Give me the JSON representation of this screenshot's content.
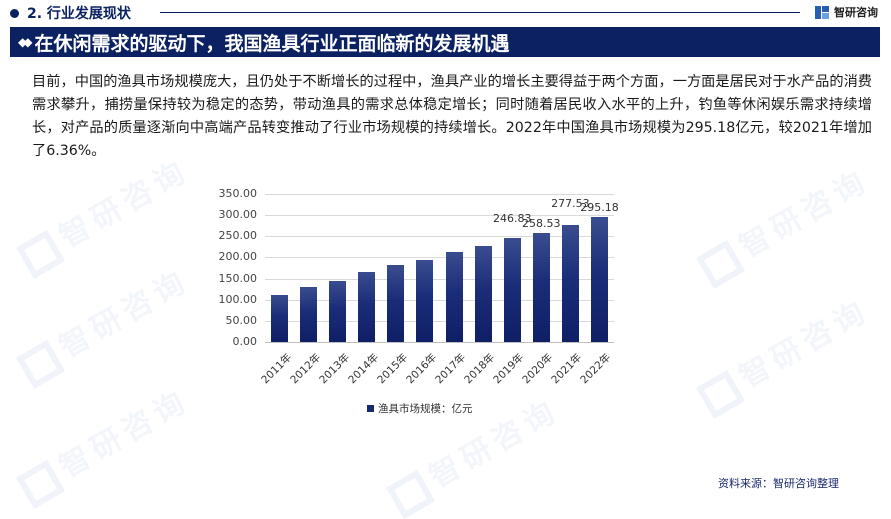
{
  "section": {
    "title": "2. 行业发展现状"
  },
  "logo": {
    "text": "智研咨询"
  },
  "banner": {
    "icon": "diamond-icon",
    "title": "在休闲需求的驱动下，我国渔具行业正面临新的发展机遇"
  },
  "paragraph": {
    "text": "目前，中国的渔具市场规模庞大，且仍处于不断增长的过程中，渔具产业的增长主要得益于两个方面，一方面是居民对于水产品的消费需求攀升，捕捞量保持较为稳定的态势，带动渔具的需求总体稳定增长；同时随着居民收入水平的上升，钓鱼等休闲娱乐需求持续增长，对产品的质量逐渐向中高端产品转变推动了行业市场规模的持续增长。2022年中国渔具市场规模为295.18亿元，较2021年增加了6.36%。"
  },
  "chart_data": {
    "type": "bar",
    "title": "",
    "xlabel": "",
    "ylabel": "",
    "categories": [
      "2011年",
      "2012年",
      "2013年",
      "2014年",
      "2015年",
      "2016年",
      "2017年",
      "2018年",
      "2019年",
      "2020年",
      "2021年",
      "2022年"
    ],
    "series": [
      {
        "name": "渔具市场规模：亿元",
        "values": [
          112,
          130,
          145,
          166,
          182,
          194,
          213,
          227,
          246.83,
          258.53,
          277.53,
          295.18
        ],
        "color": "#16286e"
      }
    ],
    "data_labels": [
      "",
      "",
      "",
      "",
      "",
      "",
      "",
      "",
      "246.83",
      "258.53",
      "277.53",
      "295.18"
    ],
    "ylim": [
      0,
      350
    ],
    "yticks": [
      "350.00",
      "300.00",
      "250.00",
      "200.00",
      "150.00",
      "100.00",
      "50.00",
      "0.00"
    ],
    "grid": true,
    "legend_position": "bottom"
  },
  "legend": {
    "label": "渔具市场规模：亿元"
  },
  "source": {
    "text": "资料来源：智研咨询整理"
  }
}
